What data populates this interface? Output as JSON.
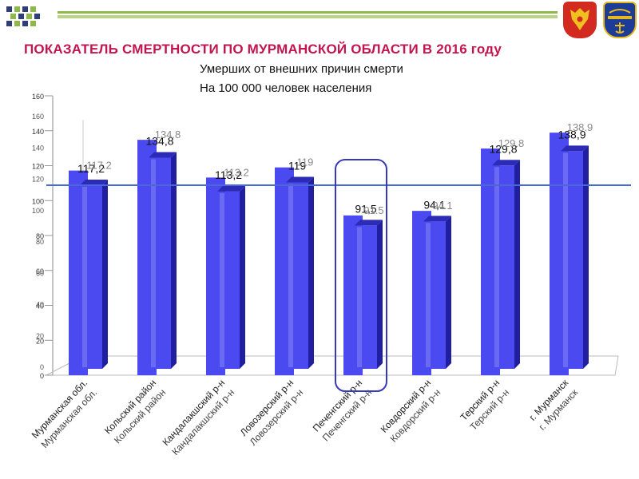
{
  "header": {
    "title": "ПОКАЗАТЕЛЬ СМЕРТНОСТИ ПО МУРМАНСКОЙ ОБЛАСТИ В 2016 году",
    "subtitle_line1": "Умерших от внешних причин смерти",
    "subtitle_line2": "На 100 000 человек населения",
    "icons": [
      "russia-coat-of-arms-icon",
      "murmansk-coat-of-arms-icon"
    ],
    "colors": {
      "title": "#c2154f",
      "accent_green": "#8fb84a",
      "bar_blue": "#4a4af0",
      "line_blue": "#4a68d8",
      "highlight": "#3838b8"
    }
  },
  "chart_data": {
    "type": "bar",
    "categories": [
      "Мурманская обл.",
      "Кольский район",
      "Кандалакшский р-н",
      "Ловозерский р-н",
      "Печенгский р-н",
      "Ковдорский р-н",
      "Терский р-н",
      "г. Мурманск"
    ],
    "front_labels": [
      "117,2",
      "134,8",
      "113,2",
      "119",
      "91,5",
      "94,1",
      "129,8",
      "138,9"
    ],
    "back_labels": [
      "117.2",
      "134.8",
      "113.2",
      "119",
      "91.5",
      "94.1",
      "129.8",
      "138.9"
    ],
    "values": [
      117.2,
      134.8,
      113.2,
      119,
      91.5,
      94.1,
      129.8,
      138.9
    ],
    "yticks": [
      0,
      20,
      40,
      60,
      80,
      100,
      120,
      140,
      160
    ],
    "ylim": [
      0,
      160
    ],
    "reference_line": 117.2,
    "highlighted_category": "Печенгский р-н",
    "grid": false,
    "legend": "none"
  }
}
